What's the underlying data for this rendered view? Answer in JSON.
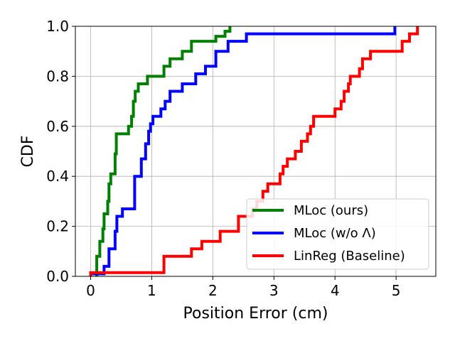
{
  "chart_data": {
    "type": "line",
    "step": true,
    "xlabel": "Position Error (cm)",
    "ylabel": "CDF",
    "xlim": [
      -0.25,
      5.65
    ],
    "ylim": [
      0,
      1
    ],
    "xticks": [
      "0",
      "1",
      "2",
      "3",
      "4",
      "5"
    ],
    "yticks": [
      "0.0",
      "0.2",
      "0.4",
      "0.6",
      "0.8",
      "1.0"
    ],
    "grid": true,
    "legend_position": "lower-right",
    "series": [
      {
        "name": "MLoc (ours)",
        "color": "#008000",
        "points": [
          [
            0.1,
            0.0
          ],
          [
            0.1,
            0.08
          ],
          [
            0.15,
            0.08
          ],
          [
            0.15,
            0.14
          ],
          [
            0.2,
            0.14
          ],
          [
            0.2,
            0.19
          ],
          [
            0.22,
            0.19
          ],
          [
            0.22,
            0.25
          ],
          [
            0.28,
            0.25
          ],
          [
            0.28,
            0.3
          ],
          [
            0.3,
            0.3
          ],
          [
            0.3,
            0.37
          ],
          [
            0.33,
            0.37
          ],
          [
            0.33,
            0.41
          ],
          [
            0.4,
            0.41
          ],
          [
            0.4,
            0.49
          ],
          [
            0.42,
            0.49
          ],
          [
            0.42,
            0.57
          ],
          [
            0.62,
            0.57
          ],
          [
            0.62,
            0.6
          ],
          [
            0.67,
            0.6
          ],
          [
            0.67,
            0.64
          ],
          [
            0.7,
            0.64
          ],
          [
            0.7,
            0.7
          ],
          [
            0.73,
            0.7
          ],
          [
            0.73,
            0.74
          ],
          [
            0.78,
            0.74
          ],
          [
            0.78,
            0.77
          ],
          [
            0.93,
            0.77
          ],
          [
            0.93,
            0.8
          ],
          [
            1.2,
            0.8
          ],
          [
            1.2,
            0.84
          ],
          [
            1.3,
            0.84
          ],
          [
            1.3,
            0.87
          ],
          [
            1.5,
            0.87
          ],
          [
            1.5,
            0.9
          ],
          [
            1.65,
            0.9
          ],
          [
            1.65,
            0.94
          ],
          [
            2.05,
            0.94
          ],
          [
            2.05,
            0.96
          ],
          [
            2.2,
            0.96
          ],
          [
            2.2,
            0.98
          ],
          [
            2.28,
            0.98
          ],
          [
            2.28,
            1.0
          ]
        ]
      },
      {
        "name": "MLoc (w/o Λ)",
        "color": "#0000ff",
        "points": [
          [
            0.0,
            0.01
          ],
          [
            0.22,
            0.01
          ],
          [
            0.22,
            0.04
          ],
          [
            0.3,
            0.04
          ],
          [
            0.3,
            0.11
          ],
          [
            0.4,
            0.11
          ],
          [
            0.4,
            0.18
          ],
          [
            0.43,
            0.18
          ],
          [
            0.43,
            0.24
          ],
          [
            0.52,
            0.24
          ],
          [
            0.52,
            0.27
          ],
          [
            0.72,
            0.27
          ],
          [
            0.72,
            0.4
          ],
          [
            0.83,
            0.4
          ],
          [
            0.83,
            0.47
          ],
          [
            0.9,
            0.47
          ],
          [
            0.9,
            0.53
          ],
          [
            0.95,
            0.53
          ],
          [
            0.95,
            0.58
          ],
          [
            0.98,
            0.58
          ],
          [
            0.98,
            0.61
          ],
          [
            1.02,
            0.61
          ],
          [
            1.02,
            0.64
          ],
          [
            1.15,
            0.64
          ],
          [
            1.15,
            0.67
          ],
          [
            1.22,
            0.67
          ],
          [
            1.22,
            0.7
          ],
          [
            1.3,
            0.7
          ],
          [
            1.3,
            0.74
          ],
          [
            1.5,
            0.74
          ],
          [
            1.5,
            0.77
          ],
          [
            1.72,
            0.77
          ],
          [
            1.72,
            0.81
          ],
          [
            1.88,
            0.81
          ],
          [
            1.88,
            0.84
          ],
          [
            2.05,
            0.84
          ],
          [
            2.05,
            0.9
          ],
          [
            2.25,
            0.9
          ],
          [
            2.25,
            0.94
          ],
          [
            2.55,
            0.94
          ],
          [
            2.55,
            0.97
          ],
          [
            4.98,
            0.97
          ],
          [
            4.98,
            1.0
          ]
        ]
      },
      {
        "name": "LinReg (Baseline)",
        "color": "#ff0000",
        "points": [
          [
            0.0,
            0.0
          ],
          [
            0.0,
            0.015
          ],
          [
            1.2,
            0.015
          ],
          [
            1.2,
            0.08
          ],
          [
            1.65,
            0.08
          ],
          [
            1.65,
            0.11
          ],
          [
            1.82,
            0.11
          ],
          [
            1.82,
            0.14
          ],
          [
            2.12,
            0.14
          ],
          [
            2.12,
            0.18
          ],
          [
            2.42,
            0.18
          ],
          [
            2.42,
            0.24
          ],
          [
            2.65,
            0.24
          ],
          [
            2.65,
            0.27
          ],
          [
            2.72,
            0.27
          ],
          [
            2.72,
            0.3
          ],
          [
            2.82,
            0.3
          ],
          [
            2.82,
            0.34
          ],
          [
            2.9,
            0.34
          ],
          [
            2.9,
            0.37
          ],
          [
            3.1,
            0.37
          ],
          [
            3.1,
            0.41
          ],
          [
            3.15,
            0.41
          ],
          [
            3.15,
            0.44
          ],
          [
            3.22,
            0.44
          ],
          [
            3.22,
            0.47
          ],
          [
            3.35,
            0.47
          ],
          [
            3.35,
            0.5
          ],
          [
            3.45,
            0.5
          ],
          [
            3.45,
            0.54
          ],
          [
            3.55,
            0.54
          ],
          [
            3.55,
            0.57
          ],
          [
            3.6,
            0.57
          ],
          [
            3.6,
            0.6
          ],
          [
            3.65,
            0.6
          ],
          [
            3.65,
            0.64
          ],
          [
            4.0,
            0.64
          ],
          [
            4.0,
            0.67
          ],
          [
            4.1,
            0.67
          ],
          [
            4.1,
            0.7
          ],
          [
            4.15,
            0.7
          ],
          [
            4.15,
            0.74
          ],
          [
            4.22,
            0.74
          ],
          [
            4.22,
            0.77
          ],
          [
            4.25,
            0.77
          ],
          [
            4.25,
            0.8
          ],
          [
            4.4,
            0.8
          ],
          [
            4.4,
            0.83
          ],
          [
            4.45,
            0.83
          ],
          [
            4.45,
            0.87
          ],
          [
            4.58,
            0.87
          ],
          [
            4.58,
            0.9
          ],
          [
            5.1,
            0.9
          ],
          [
            5.1,
            0.94
          ],
          [
            5.22,
            0.94
          ],
          [
            5.22,
            0.97
          ],
          [
            5.35,
            0.97
          ],
          [
            5.35,
            1.0
          ]
        ]
      }
    ]
  }
}
